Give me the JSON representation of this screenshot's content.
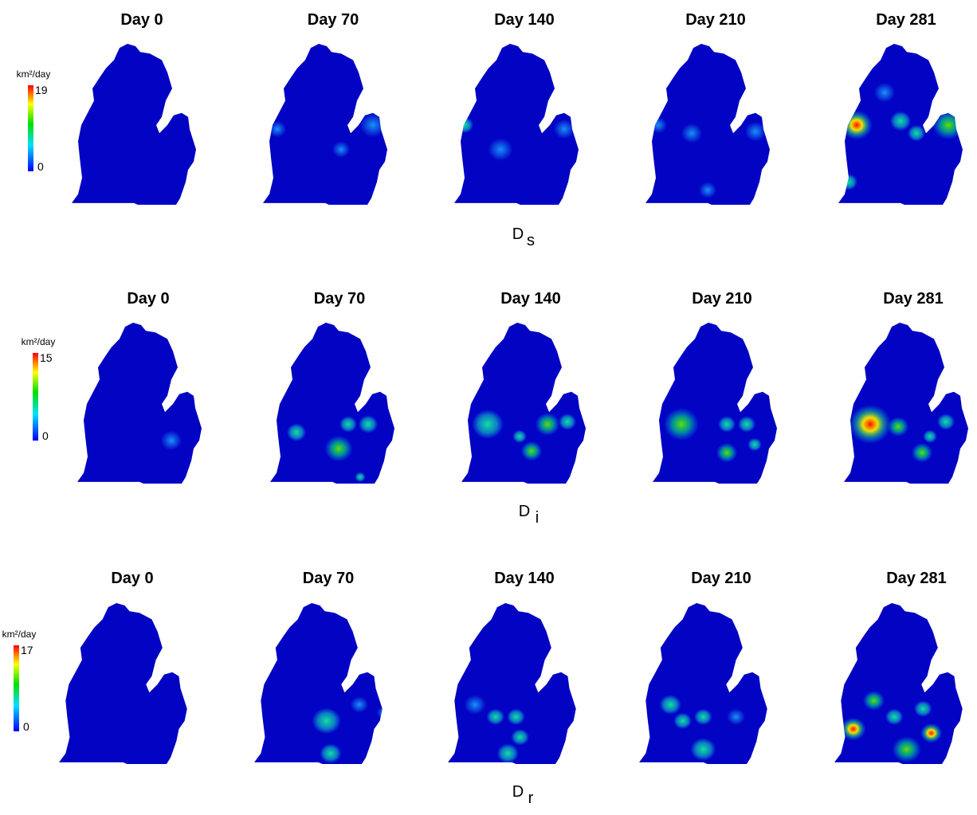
{
  "rows": [
    {
      "titles": [
        "Day 0",
        "Day 70",
        "Day 140",
        "Day 210",
        "Day 281"
      ],
      "label": "D",
      "subscript": "s",
      "colorbar": {
        "unit": "km²/day",
        "max": 19,
        "min": 0
      }
    },
    {
      "titles": [
        "Day 0",
        "Day 70",
        "Day 140",
        "Day 210",
        "Day 281"
      ],
      "label": "D",
      "subscript": "i",
      "colorbar": {
        "unit": "km²/day",
        "max": 15,
        "min": 0
      }
    },
    {
      "titles": [
        "Day 0",
        "Day 70",
        "Day 140",
        "Day 210",
        "Day 281"
      ],
      "label": "D",
      "subscript": "r",
      "colorbar": {
        "unit": "km²/day",
        "max": 17,
        "min": 0
      }
    }
  ]
}
